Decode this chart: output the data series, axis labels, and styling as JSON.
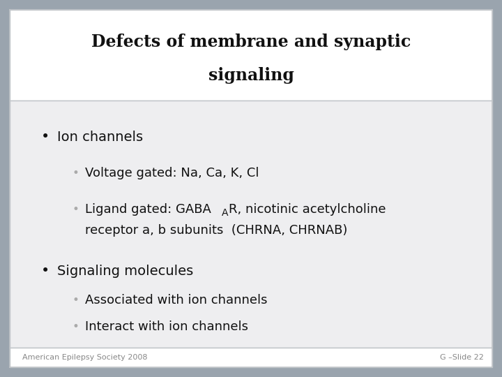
{
  "title_line1": "Defects of membrane and synaptic",
  "title_line2": "signaling",
  "background_outer": "#9aa4ae",
  "background_title": "#ffffff",
  "background_body": "#eeeef0",
  "border_color": "#c0c4c8",
  "title_fontsize": 17,
  "body_fontsize": 14,
  "sub_fontsize": 13,
  "footer_fontsize": 8,
  "footer_left": "American Epilepsy Society 2008",
  "footer_right": "G –Slide 22",
  "text_color": "#111111",
  "sub_bullet_color": "#aaaaaa",
  "bullet_main": "•",
  "bullet_sub": "•"
}
